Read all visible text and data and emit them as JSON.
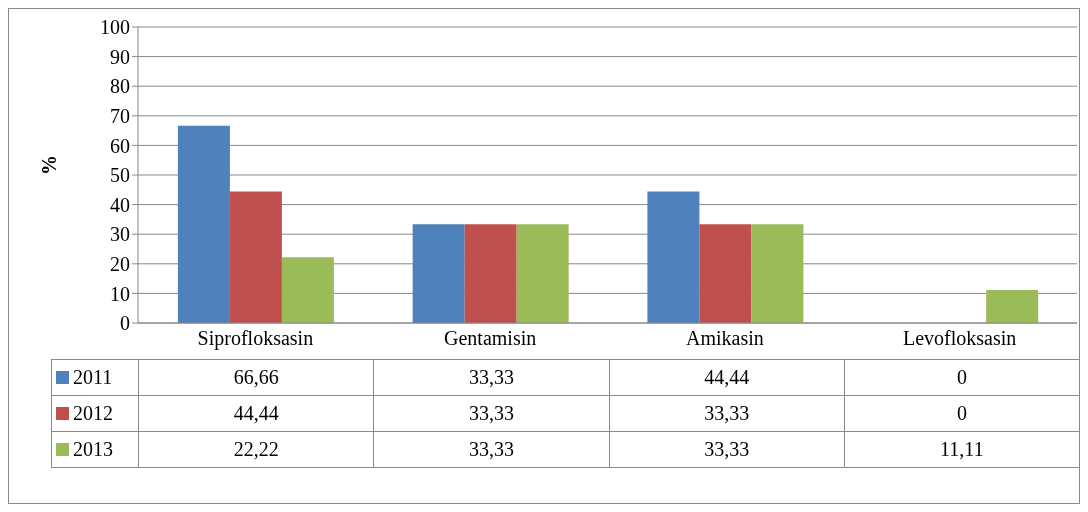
{
  "chart_data": {
    "type": "bar",
    "ylabel": "%",
    "categories": [
      "Siprofloksasin",
      "Gentamisin",
      "Amikasin",
      "Levofloksasin"
    ],
    "series": [
      {
        "name": "2011",
        "color": "#4f81bd",
        "values": [
          66.66,
          33.33,
          44.44,
          0
        ],
        "value_labels": [
          "66,66",
          "33,33",
          "44,44",
          "0"
        ]
      },
      {
        "name": "2012",
        "color": "#c0504d",
        "values": [
          44.44,
          33.33,
          33.33,
          0
        ],
        "value_labels": [
          "44,44",
          "33,33",
          "33,33",
          "0"
        ]
      },
      {
        "name": "2013",
        "color": "#9bbb59",
        "values": [
          22.22,
          33.33,
          33.33,
          11.11
        ],
        "value_labels": [
          "22,22",
          "33,33",
          "33,33",
          "11,11"
        ]
      }
    ],
    "ylim": [
      0,
      100
    ],
    "yticks": [
      0,
      10,
      20,
      30,
      40,
      50,
      60,
      70,
      80,
      90,
      100
    ],
    "grid": "y",
    "legend": "bottom"
  }
}
